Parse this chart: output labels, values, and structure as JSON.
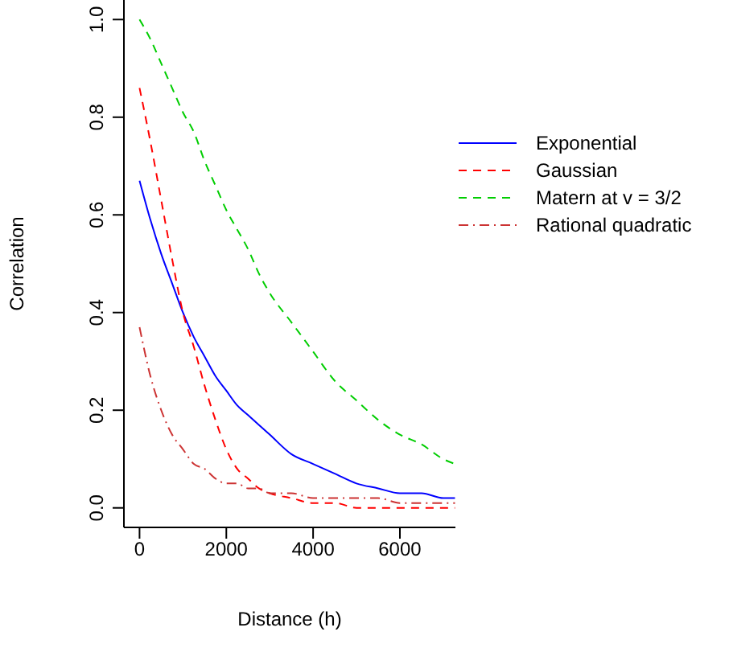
{
  "chart_data": {
    "type": "line",
    "xlabel": "Distance (h)",
    "ylabel": "Correlation",
    "x": [
      0,
      250,
      500,
      750,
      1000,
      1250,
      1500,
      1750,
      2000,
      2250,
      2500,
      2750,
      3000,
      3500,
      4000,
      4500,
      5000,
      5500,
      6000,
      6500,
      7000,
      7270
    ],
    "series": [
      {
        "name": "Exponential",
        "color": "#0000ff",
        "line_style": "solid",
        "values": [
          0.67,
          0.59,
          0.52,
          0.46,
          0.4,
          0.35,
          0.31,
          0.27,
          0.24,
          0.21,
          0.19,
          0.17,
          0.15,
          0.11,
          0.09,
          0.07,
          0.05,
          0.04,
          0.03,
          0.03,
          0.02,
          0.02
        ]
      },
      {
        "name": "Gaussian",
        "color": "#ff0000",
        "line_style": "dashed",
        "values": [
          0.86,
          0.75,
          0.63,
          0.51,
          0.4,
          0.33,
          0.25,
          0.18,
          0.12,
          0.08,
          0.06,
          0.04,
          0.03,
          0.02,
          0.01,
          0.01,
          0.0,
          0.0,
          0.0,
          0.0,
          0.0,
          0.0
        ]
      },
      {
        "name": "Matern at v = 3/2",
        "color": "#00cd00",
        "line_style": "dashed",
        "values": [
          1.0,
          0.96,
          0.91,
          0.86,
          0.81,
          0.77,
          0.71,
          0.66,
          0.61,
          0.57,
          0.53,
          0.48,
          0.44,
          0.38,
          0.32,
          0.26,
          0.22,
          0.18,
          0.15,
          0.13,
          0.1,
          0.09
        ]
      },
      {
        "name": "Rational quadratic",
        "color": "#cc3333",
        "line_style": "dashdot",
        "values": [
          0.37,
          0.27,
          0.2,
          0.15,
          0.12,
          0.09,
          0.08,
          0.06,
          0.05,
          0.05,
          0.04,
          0.04,
          0.03,
          0.03,
          0.02,
          0.02,
          0.02,
          0.02,
          0.01,
          0.01,
          0.01,
          0.01
        ]
      }
    ],
    "xlim": [
      -360,
      7280
    ],
    "ylim": [
      -0.04,
      1.04
    ],
    "xticks": [
      0,
      2000,
      4000,
      6000
    ],
    "yticks": [
      {
        "value": 0,
        "label": "0.0"
      },
      {
        "value": 0.2,
        "label": "0.2"
      },
      {
        "value": 0.4,
        "label": "0.4"
      },
      {
        "value": 0.6,
        "label": "0.6"
      },
      {
        "value": 0.8,
        "label": "0.8"
      },
      {
        "value": 1.0,
        "label": "1.0"
      }
    ],
    "grid": false,
    "legend": "top right",
    "marker": "none"
  }
}
